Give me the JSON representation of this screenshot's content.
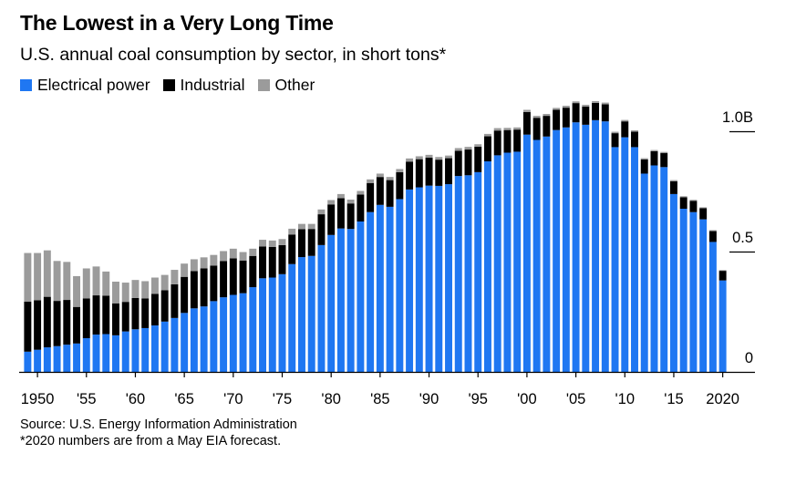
{
  "header": {
    "title": "The Lowest in a Very Long Time",
    "subtitle": "U.S. annual coal consumption by sector, in short tons*"
  },
  "legend": [
    {
      "label": "Electrical power",
      "color": "#1f77f2"
    },
    {
      "label": "Industrial",
      "color": "#000000"
    },
    {
      "label": "Other",
      "color": "#9b9b9b"
    }
  ],
  "footer": {
    "source": "Source: U.S. Energy Information Administration",
    "note": "*2020 numbers are from a May EIA forecast."
  },
  "chart_data": {
    "type": "bar",
    "stacked": true,
    "x": [
      1949,
      1950,
      1951,
      1952,
      1953,
      1954,
      1955,
      1956,
      1957,
      1958,
      1959,
      1960,
      1961,
      1962,
      1963,
      1964,
      1965,
      1966,
      1967,
      1968,
      1969,
      1970,
      1971,
      1972,
      1973,
      1974,
      1975,
      1976,
      1977,
      1978,
      1979,
      1980,
      1981,
      1982,
      1983,
      1984,
      1985,
      1986,
      1987,
      1988,
      1989,
      1990,
      1991,
      1992,
      1993,
      1994,
      1995,
      1996,
      1997,
      1998,
      1999,
      2000,
      2001,
      2002,
      2003,
      2004,
      2005,
      2006,
      2007,
      2008,
      2009,
      2010,
      2011,
      2012,
      2013,
      2014,
      2015,
      2016,
      2017,
      2018,
      2019,
      2020
    ],
    "x_tick_labels": [
      {
        "year": 1950,
        "label": "1950"
      },
      {
        "year": 1955,
        "label": "'55"
      },
      {
        "year": 1960,
        "label": "'60"
      },
      {
        "year": 1965,
        "label": "'65"
      },
      {
        "year": 1970,
        "label": "'70"
      },
      {
        "year": 1975,
        "label": "'75"
      },
      {
        "year": 1980,
        "label": "'80"
      },
      {
        "year": 1985,
        "label": "'85"
      },
      {
        "year": 1990,
        "label": "'90"
      },
      {
        "year": 1995,
        "label": "'95"
      },
      {
        "year": 2000,
        "label": "'00"
      },
      {
        "year": 2005,
        "label": "'05"
      },
      {
        "year": 2010,
        "label": "'10"
      },
      {
        "year": 2015,
        "label": "'15"
      },
      {
        "year": 2020,
        "label": "2020"
      }
    ],
    "y_ticks": [
      {
        "value": 0,
        "label": "0"
      },
      {
        "value": 0.5,
        "label": "0.5"
      },
      {
        "value": 1.0,
        "label": "1.0B"
      }
    ],
    "ylim": [
      0,
      1.15
    ],
    "series": [
      {
        "name": "Electrical power",
        "color": "#1f77f2",
        "values": [
          0.084,
          0.092,
          0.102,
          0.107,
          0.113,
          0.118,
          0.14,
          0.155,
          0.157,
          0.152,
          0.168,
          0.177,
          0.182,
          0.193,
          0.209,
          0.224,
          0.245,
          0.264,
          0.272,
          0.294,
          0.31,
          0.32,
          0.327,
          0.352,
          0.389,
          0.392,
          0.406,
          0.448,
          0.477,
          0.482,
          0.527,
          0.569,
          0.596,
          0.594,
          0.625,
          0.664,
          0.694,
          0.686,
          0.718,
          0.758,
          0.767,
          0.774,
          0.773,
          0.78,
          0.814,
          0.817,
          0.83,
          0.875,
          0.9,
          0.911,
          0.915,
          0.986,
          0.964,
          0.978,
          1.005,
          1.016,
          1.037,
          1.027,
          1.046,
          1.041,
          0.934,
          0.975,
          0.934,
          0.824,
          0.858,
          0.851,
          0.739,
          0.678,
          0.664,
          0.634,
          0.54,
          0.38
        ]
      },
      {
        "name": "Industrial",
        "color": "#000000",
        "values": [
          0.208,
          0.206,
          0.21,
          0.188,
          0.186,
          0.152,
          0.165,
          0.163,
          0.16,
          0.133,
          0.123,
          0.13,
          0.123,
          0.131,
          0.13,
          0.14,
          0.15,
          0.155,
          0.158,
          0.148,
          0.151,
          0.152,
          0.136,
          0.13,
          0.132,
          0.127,
          0.121,
          0.123,
          0.116,
          0.112,
          0.128,
          0.127,
          0.126,
          0.106,
          0.112,
          0.121,
          0.116,
          0.111,
          0.112,
          0.116,
          0.117,
          0.116,
          0.109,
          0.108,
          0.105,
          0.107,
          0.106,
          0.104,
          0.103,
          0.094,
          0.092,
          0.094,
          0.092,
          0.086,
          0.084,
          0.082,
          0.08,
          0.076,
          0.072,
          0.071,
          0.058,
          0.066,
          0.064,
          0.059,
          0.059,
          0.058,
          0.053,
          0.048,
          0.047,
          0.046,
          0.045,
          0.04
        ]
      },
      {
        "name": "Other",
        "color": "#9b9b9b",
        "values": [
          0.202,
          0.196,
          0.193,
          0.166,
          0.158,
          0.128,
          0.125,
          0.12,
          0.1,
          0.09,
          0.08,
          0.075,
          0.072,
          0.068,
          0.064,
          0.06,
          0.055,
          0.049,
          0.046,
          0.044,
          0.041,
          0.04,
          0.035,
          0.03,
          0.028,
          0.027,
          0.025,
          0.024,
          0.022,
          0.021,
          0.02,
          0.018,
          0.017,
          0.016,
          0.015,
          0.015,
          0.014,
          0.013,
          0.013,
          0.013,
          0.012,
          0.012,
          0.011,
          0.011,
          0.011,
          0.011,
          0.01,
          0.01,
          0.01,
          0.009,
          0.009,
          0.009,
          0.008,
          0.008,
          0.008,
          0.008,
          0.007,
          0.007,
          0.007,
          0.007,
          0.006,
          0.006,
          0.006,
          0.005,
          0.005,
          0.005,
          0.005,
          0.004,
          0.004,
          0.004,
          0.004,
          0.003
        ]
      }
    ]
  }
}
